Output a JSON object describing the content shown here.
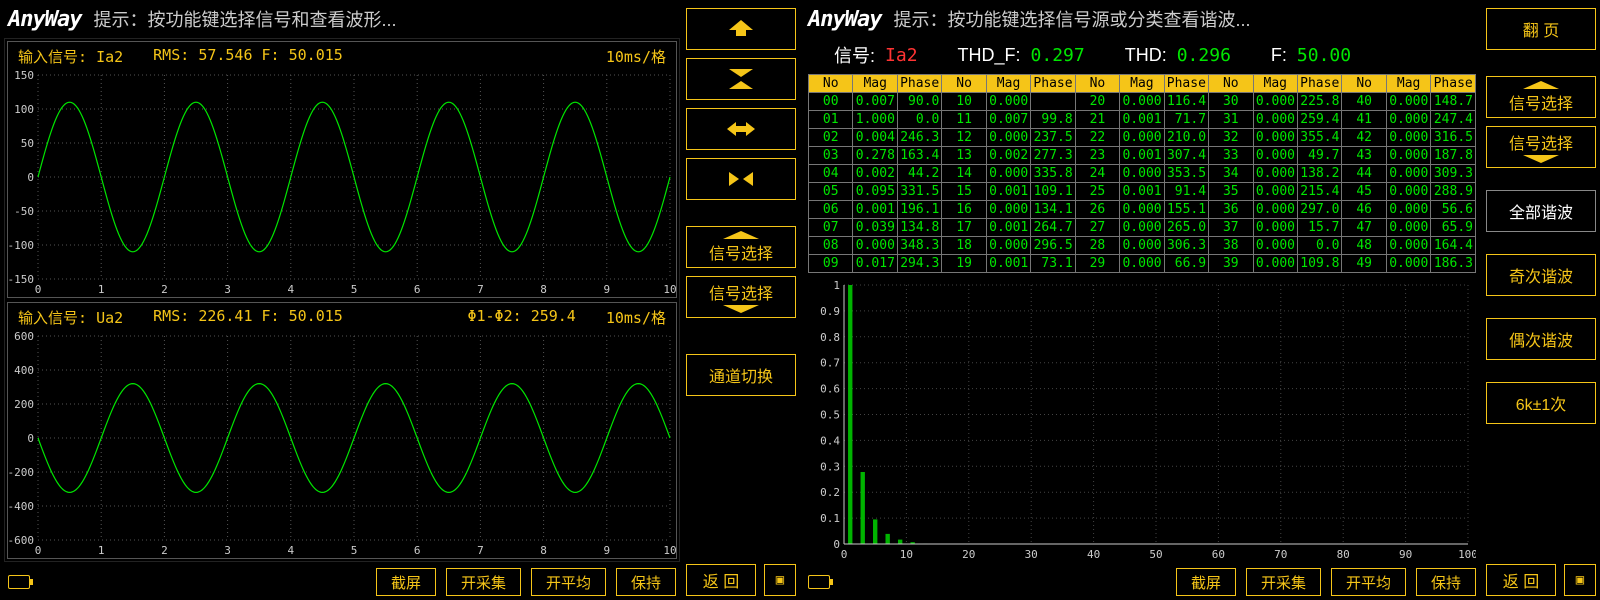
{
  "colors": {
    "accent": "#f5c518",
    "trace": "#00e600",
    "bg": "#000000",
    "grid": "#666666",
    "value_red": "#ff3333"
  },
  "left": {
    "hint": "提示：按功能键选择信号和查看波形...",
    "scope1": {
      "signal_label": "输入信号:",
      "signal": "Ia2",
      "rms_label": "RMS:",
      "rms": "57.546",
      "f_label": "F:",
      "f": "50.015",
      "timebase": "10ms/格",
      "ylim": [
        -150,
        150
      ],
      "ytick_step": 50,
      "xlim": [
        0,
        10
      ],
      "xtick_step": 1,
      "waveform_type": "rectified-sine",
      "amplitude": 110,
      "periods": 5
    },
    "scope2": {
      "signal_label": "输入信号:",
      "signal": "Ua2",
      "rms_label": "RMS:",
      "rms": "226.41",
      "f_label": "F:",
      "f": "50.015",
      "phase_label": "Φ1-Φ2:",
      "phase": "259.4",
      "timebase": "10ms/格",
      "ylim": [
        -600,
        600
      ],
      "ytick_step": 200,
      "xlim": [
        0,
        10
      ],
      "xtick_step": 1,
      "waveform_type": "sine",
      "amplitude": 320,
      "periods": 5
    },
    "side_buttons": {
      "sig_sel1": "信号选择",
      "sig_sel2": "信号选择",
      "chan_switch": "通道切换",
      "return": "返   回"
    },
    "bottom": {
      "screenshot": "截屏",
      "start_acq": "开采集",
      "start_avg": "开平均",
      "hold": "保持"
    }
  },
  "right": {
    "hint": "提示：按功能键选择信号源或分类查看谐波...",
    "summary": {
      "sig_label": "信号:",
      "sig": "Ia2",
      "thdf_label": "THD_F:",
      "thdf": "0.297",
      "thd_label": "THD:",
      "thd": "0.296",
      "f_label": "F:",
      "f": "50.00"
    },
    "table": {
      "headers": [
        "No",
        "Mag",
        "Phase"
      ],
      "groups": 5,
      "rows_per_group": 10,
      "data": [
        [
          "00",
          "0.007",
          "90.0"
        ],
        [
          "01",
          "1.000",
          "0.0"
        ],
        [
          "02",
          "0.004",
          "246.3"
        ],
        [
          "03",
          "0.278",
          "163.4"
        ],
        [
          "04",
          "0.002",
          "44.2"
        ],
        [
          "05",
          "0.095",
          "331.5"
        ],
        [
          "06",
          "0.001",
          "196.1"
        ],
        [
          "07",
          "0.039",
          "134.8"
        ],
        [
          "08",
          "0.000",
          "348.3"
        ],
        [
          "09",
          "0.017",
          "294.3"
        ],
        [
          "10",
          "0.000",
          ""
        ],
        [
          "11",
          "0.007",
          "99.8"
        ],
        [
          "12",
          "0.000",
          "237.5"
        ],
        [
          "13",
          "0.002",
          "277.3"
        ],
        [
          "14",
          "0.000",
          "335.8"
        ],
        [
          "15",
          "0.001",
          "109.1"
        ],
        [
          "16",
          "0.000",
          "134.1"
        ],
        [
          "17",
          "0.001",
          "264.7"
        ],
        [
          "18",
          "0.000",
          "296.5"
        ],
        [
          "19",
          "0.001",
          "73.1"
        ],
        [
          "20",
          "0.000",
          "116.4"
        ],
        [
          "21",
          "0.001",
          "71.7"
        ],
        [
          "22",
          "0.000",
          "210.0"
        ],
        [
          "23",
          "0.001",
          "307.4"
        ],
        [
          "24",
          "0.000",
          "353.5"
        ],
        [
          "25",
          "0.001",
          "91.4"
        ],
        [
          "26",
          "0.000",
          "155.1"
        ],
        [
          "27",
          "0.000",
          "265.0"
        ],
        [
          "28",
          "0.000",
          "306.3"
        ],
        [
          "29",
          "0.000",
          "66.9"
        ],
        [
          "30",
          "0.000",
          "225.8"
        ],
        [
          "31",
          "0.000",
          "259.4"
        ],
        [
          "32",
          "0.000",
          "355.4"
        ],
        [
          "33",
          "0.000",
          "49.7"
        ],
        [
          "34",
          "0.000",
          "138.2"
        ],
        [
          "35",
          "0.000",
          "215.4"
        ],
        [
          "36",
          "0.000",
          "297.0"
        ],
        [
          "37",
          "0.000",
          "15.7"
        ],
        [
          "38",
          "0.000",
          "0.0"
        ],
        [
          "39",
          "0.000",
          "109.8"
        ],
        [
          "40",
          "0.000",
          "148.7"
        ],
        [
          "41",
          "0.000",
          "247.4"
        ],
        [
          "42",
          "0.000",
          "316.5"
        ],
        [
          "43",
          "0.000",
          "187.8"
        ],
        [
          "44",
          "0.000",
          "309.3"
        ],
        [
          "45",
          "0.000",
          "288.9"
        ],
        [
          "46",
          "0.000",
          "56.6"
        ],
        [
          "47",
          "0.000",
          "65.9"
        ],
        [
          "48",
          "0.000",
          "164.4"
        ],
        [
          "49",
          "0.000",
          "186.3"
        ]
      ]
    },
    "barchart": {
      "type": "bar",
      "xlim": [
        0,
        100
      ],
      "xtick_step": 10,
      "ylim": [
        0,
        1.0
      ],
      "ytick_step": 0.1,
      "bar_color": "#00b400",
      "grid_color": "#444444",
      "values": {
        "1": 1.0,
        "3": 0.278,
        "5": 0.095,
        "7": 0.039,
        "9": 0.017,
        "11": 0.007,
        "13": 0.002
      }
    },
    "side_buttons": {
      "page": "翻   页",
      "sig_sel1": "信号选择",
      "sig_sel2": "信号选择",
      "all_harm": "全部谐波",
      "odd_harm": "奇次谐波",
      "even_harm": "偶次谐波",
      "band": "6k±1次",
      "return": "返   回"
    },
    "bottom": {
      "screenshot": "截屏",
      "start_acq": "开采集",
      "start_avg": "开平均",
      "hold": "保持"
    }
  }
}
